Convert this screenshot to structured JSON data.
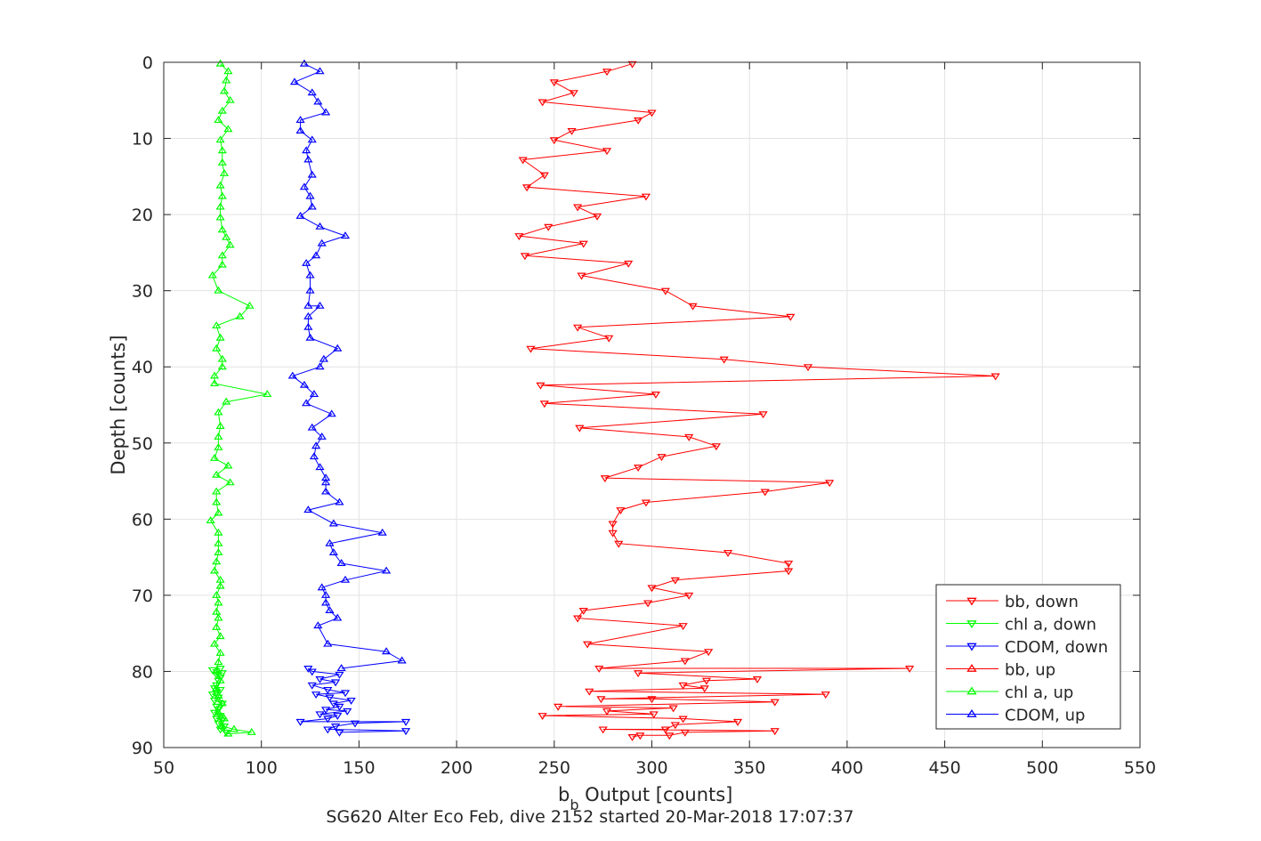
{
  "chart_data": {
    "type": "line",
    "xlabel_main": "b",
    "xlabel_sub": "b",
    "xlabel_rest": " Output [counts]",
    "ylabel": "Depth [counts]",
    "footer": "SG620 Alter Eco Feb, dive 2152 started 20-Mar-2018 17:07:37",
    "xlim": [
      50,
      550
    ],
    "ylim": [
      0,
      90
    ],
    "y_reversed": true,
    "grid": true,
    "x_ticks": [
      "50",
      "100",
      "150",
      "200",
      "250",
      "300",
      "350",
      "400",
      "450",
      "500",
      "550"
    ],
    "y_ticks": [
      "0",
      "10",
      "20",
      "30",
      "40",
      "50",
      "60",
      "70",
      "80",
      "90"
    ],
    "legend_position": "bottom-right",
    "legend": [
      "bb, down",
      "chl a, down",
      "CDOM, down",
      "bb, up",
      "chl a, up",
      "CDOM, up"
    ],
    "series": [
      {
        "name": "bb, down",
        "color": "#ff0000",
        "marker": "triangle-down",
        "points": [
          [
            290,
            0.2
          ],
          [
            277,
            1.2
          ],
          [
            250,
            2.6
          ],
          [
            260,
            4.0
          ],
          [
            244,
            5.2
          ],
          [
            300,
            6.6
          ],
          [
            293,
            7.6
          ],
          [
            259,
            9.0
          ],
          [
            250,
            10.2
          ],
          [
            277,
            11.6
          ],
          [
            234,
            12.8
          ],
          [
            245,
            14.8
          ],
          [
            236,
            16.4
          ],
          [
            297,
            17.6
          ],
          [
            262,
            19.0
          ],
          [
            272,
            20.2
          ],
          [
            247,
            21.6
          ],
          [
            232,
            22.8
          ],
          [
            265,
            23.8
          ],
          [
            235,
            25.4
          ],
          [
            288,
            26.4
          ],
          [
            264,
            28.0
          ],
          [
            307,
            30.0
          ],
          [
            321,
            32.0
          ],
          [
            371,
            33.4
          ],
          [
            262,
            34.8
          ],
          [
            278,
            36.2
          ],
          [
            238,
            37.6
          ],
          [
            337,
            39.0
          ],
          [
            380,
            40.0
          ],
          [
            476,
            41.2
          ],
          [
            243,
            42.4
          ],
          [
            302,
            43.6
          ],
          [
            245,
            44.8
          ],
          [
            357,
            46.2
          ],
          [
            263,
            48.0
          ],
          [
            319,
            49.2
          ],
          [
            333,
            50.4
          ],
          [
            305,
            51.8
          ],
          [
            293,
            53.2
          ],
          [
            276,
            54.6
          ],
          [
            391,
            55.2
          ],
          [
            358,
            56.4
          ],
          [
            297,
            57.8
          ],
          [
            284,
            58.8
          ],
          [
            280,
            60.6
          ],
          [
            280,
            61.8
          ],
          [
            283,
            63.2
          ],
          [
            339,
            64.4
          ],
          [
            370,
            65.8
          ],
          [
            370,
            66.8
          ],
          [
            312,
            68.0
          ],
          [
            300,
            69.0
          ],
          [
            319,
            70.0
          ],
          [
            298,
            71.0
          ],
          [
            265,
            72.0
          ],
          [
            262,
            73.0
          ],
          [
            316,
            74.0
          ],
          [
            267,
            76.4
          ],
          [
            329,
            77.4
          ],
          [
            317,
            78.6
          ],
          [
            273,
            79.6
          ],
          [
            432,
            79.6
          ],
          [
            293,
            80.2
          ],
          [
            354,
            81.0
          ],
          [
            328,
            81.2
          ],
          [
            316,
            81.8
          ],
          [
            327,
            82.2
          ],
          [
            268,
            82.6
          ],
          [
            389,
            83.0
          ],
          [
            274,
            83.6
          ],
          [
            300,
            83.6
          ],
          [
            363,
            84.0
          ],
          [
            252,
            84.6
          ],
          [
            311,
            84.8
          ],
          [
            277,
            85.2
          ],
          [
            301,
            85.6
          ],
          [
            244,
            85.8
          ],
          [
            316,
            86.2
          ],
          [
            344,
            86.6
          ],
          [
            312,
            87.0
          ],
          [
            307,
            87.6
          ],
          [
            275,
            87.6
          ],
          [
            363,
            87.8
          ],
          [
            317,
            88.0
          ],
          [
            309,
            88.4
          ],
          [
            294,
            88.4
          ],
          [
            290,
            88.6
          ]
        ]
      },
      {
        "name": "chl a, down",
        "color": "#00ff00",
        "marker": "triangle-down",
        "points": [
          [
            79,
            79.6
          ],
          [
            75,
            79.8
          ],
          [
            80,
            80.2
          ],
          [
            77,
            80.4
          ],
          [
            79,
            80.8
          ],
          [
            78,
            81.2
          ],
          [
            77,
            81.8
          ],
          [
            76,
            82.2
          ],
          [
            79,
            82.4
          ],
          [
            77,
            82.8
          ],
          [
            75,
            83.0
          ],
          [
            78,
            83.4
          ],
          [
            76,
            83.8
          ],
          [
            80,
            84.2
          ],
          [
            77,
            84.6
          ],
          [
            78,
            85.0
          ],
          [
            76,
            85.4
          ],
          [
            79,
            85.8
          ],
          [
            77,
            86.2
          ],
          [
            80,
            86.4
          ],
          [
            78,
            86.8
          ],
          [
            81,
            87.2
          ],
          [
            79,
            87.6
          ],
          [
            82,
            88.0
          ]
        ]
      },
      {
        "name": "CDOM, down",
        "color": "#0000ff",
        "marker": "triangle-down",
        "points": [
          [
            124,
            79.6
          ],
          [
            126,
            80.0
          ],
          [
            140,
            80.4
          ],
          [
            130,
            81.0
          ],
          [
            138,
            81.4
          ],
          [
            126,
            81.8
          ],
          [
            134,
            82.4
          ],
          [
            143,
            82.8
          ],
          [
            128,
            83.0
          ],
          [
            135,
            83.4
          ],
          [
            146,
            83.8
          ],
          [
            137,
            84.2
          ],
          [
            140,
            84.6
          ],
          [
            133,
            85.0
          ],
          [
            144,
            85.2
          ],
          [
            130,
            85.6
          ],
          [
            139,
            85.8
          ],
          [
            134,
            86.2
          ],
          [
            120,
            86.6
          ],
          [
            174,
            86.6
          ],
          [
            148,
            86.8
          ],
          [
            138,
            87.2
          ],
          [
            134,
            87.6
          ],
          [
            174,
            87.8
          ],
          [
            140,
            88.0
          ]
        ]
      },
      {
        "name": "bb, up",
        "color": "#ff0000",
        "marker": "triangle-up",
        "points": [],
        "note_hidden": true
      },
      {
        "name": "chl a, up",
        "color": "#00ff00",
        "marker": "triangle-up",
        "points": [
          [
            79,
            0.2
          ],
          [
            83,
            1.2
          ],
          [
            82,
            2.4
          ],
          [
            81,
            3.8
          ],
          [
            84,
            5.0
          ],
          [
            80,
            6.4
          ],
          [
            78,
            7.6
          ],
          [
            83,
            8.8
          ],
          [
            79,
            10.2
          ],
          [
            80,
            11.6
          ],
          [
            80,
            13.2
          ],
          [
            81,
            14.6
          ],
          [
            79,
            16.2
          ],
          [
            80,
            17.6
          ],
          [
            79,
            19.0
          ],
          [
            79,
            20.4
          ],
          [
            80,
            22.0
          ],
          [
            82,
            23.0
          ],
          [
            84,
            24.0
          ],
          [
            80,
            25.4
          ],
          [
            80,
            26.6
          ],
          [
            75,
            28.0
          ],
          [
            78,
            30.0
          ],
          [
            94,
            32.0
          ],
          [
            89,
            33.4
          ],
          [
            77,
            34.6
          ],
          [
            79,
            36.2
          ],
          [
            77,
            37.6
          ],
          [
            80,
            39.0
          ],
          [
            80,
            40.0
          ],
          [
            76,
            41.2
          ],
          [
            76,
            42.2
          ],
          [
            103,
            43.6
          ],
          [
            82,
            44.6
          ],
          [
            78,
            46.0
          ],
          [
            79,
            47.8
          ],
          [
            78,
            49.2
          ],
          [
            78,
            50.6
          ],
          [
            76,
            52.0
          ],
          [
            83,
            53.0
          ],
          [
            77,
            54.2
          ],
          [
            84,
            55.2
          ],
          [
            77,
            56.4
          ],
          [
            77,
            57.8
          ],
          [
            78,
            59.2
          ],
          [
            74,
            60.2
          ],
          [
            78,
            61.8
          ],
          [
            78,
            63.2
          ],
          [
            78,
            64.4
          ],
          [
            77,
            65.6
          ],
          [
            76,
            66.8
          ],
          [
            79,
            68.0
          ],
          [
            79,
            68.8
          ],
          [
            77,
            70.0
          ],
          [
            78,
            71.0
          ],
          [
            77,
            72.2
          ],
          [
            78,
            73.0
          ],
          [
            77,
            74.2
          ],
          [
            79,
            75.4
          ],
          [
            76,
            76.4
          ],
          [
            79,
            77.6
          ],
          [
            78,
            78.8
          ],
          [
            77,
            80.0
          ],
          [
            79,
            81.2
          ],
          [
            77,
            82.2
          ],
          [
            78,
            83.2
          ],
          [
            80,
            84.2
          ],
          [
            78,
            85.4
          ],
          [
            81,
            86.2
          ],
          [
            80,
            87.2
          ],
          [
            86,
            87.6
          ],
          [
            95,
            88.0
          ],
          [
            83,
            88.2
          ]
        ]
      },
      {
        "name": "CDOM, up",
        "color": "#0000ff",
        "marker": "triangle-up",
        "points": [
          [
            122,
            0.2
          ],
          [
            130,
            1.2
          ],
          [
            117,
            2.6
          ],
          [
            126,
            4.0
          ],
          [
            129,
            5.2
          ],
          [
            133,
            6.6
          ],
          [
            120,
            7.6
          ],
          [
            120,
            9.0
          ],
          [
            126,
            10.2
          ],
          [
            123,
            11.6
          ],
          [
            124,
            12.8
          ],
          [
            126,
            14.8
          ],
          [
            122,
            16.4
          ],
          [
            125,
            17.6
          ],
          [
            126,
            19.0
          ],
          [
            120,
            20.2
          ],
          [
            130,
            21.6
          ],
          [
            143,
            22.8
          ],
          [
            131,
            23.8
          ],
          [
            128,
            25.4
          ],
          [
            123,
            26.4
          ],
          [
            125,
            28.0
          ],
          [
            125,
            30.0
          ],
          [
            124,
            32.0
          ],
          [
            130,
            32.0
          ],
          [
            124,
            33.4
          ],
          [
            124,
            34.8
          ],
          [
            125,
            36.2
          ],
          [
            139,
            37.6
          ],
          [
            132,
            39.0
          ],
          [
            130,
            40.0
          ],
          [
            116,
            41.2
          ],
          [
            122,
            42.4
          ],
          [
            127,
            43.6
          ],
          [
            123,
            44.8
          ],
          [
            136,
            46.2
          ],
          [
            126,
            48.0
          ],
          [
            131,
            49.2
          ],
          [
            128,
            50.4
          ],
          [
            127,
            51.8
          ],
          [
            130,
            53.2
          ],
          [
            133,
            54.6
          ],
          [
            133,
            55.2
          ],
          [
            133,
            56.4
          ],
          [
            140,
            57.8
          ],
          [
            124,
            58.8
          ],
          [
            137,
            60.6
          ],
          [
            162,
            61.8
          ],
          [
            135,
            63.2
          ],
          [
            137,
            64.4
          ],
          [
            141,
            65.8
          ],
          [
            164,
            66.8
          ],
          [
            143,
            68.0
          ],
          [
            131,
            69.0
          ],
          [
            133,
            70.0
          ],
          [
            133,
            71.0
          ],
          [
            135,
            72.0
          ],
          [
            139,
            73.0
          ],
          [
            129,
            74.0
          ],
          [
            134,
            76.4
          ],
          [
            164,
            77.4
          ],
          [
            172,
            78.6
          ],
          [
            141,
            79.6
          ]
        ]
      }
    ]
  }
}
